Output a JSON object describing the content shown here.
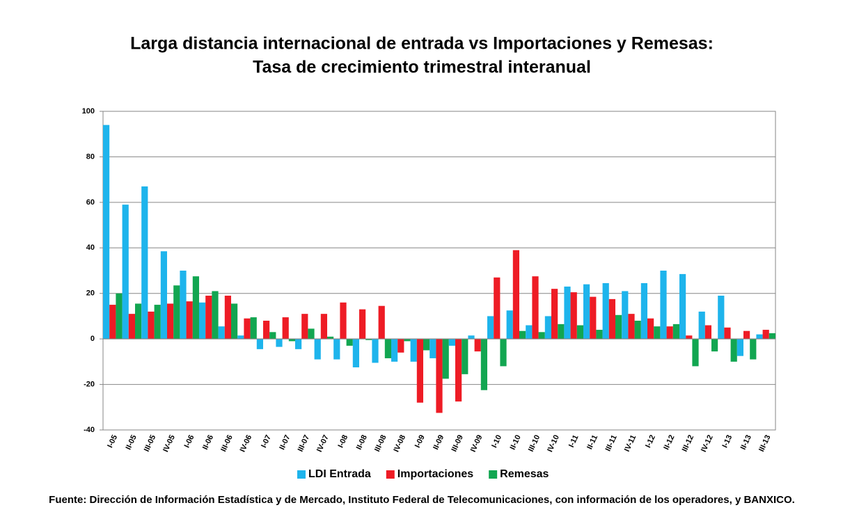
{
  "chart_data": {
    "type": "bar",
    "title": [
      "Larga distancia internacional de entrada vs Importaciones y Remesas:",
      "Tasa de crecimiento trimestral interanual"
    ],
    "categories": [
      "I-05",
      "II-05",
      "III-05",
      "IV-05",
      "I-06",
      "II-06",
      "III-06",
      "IV-06",
      "I-07",
      "II-07",
      "III-07",
      "IV-07",
      "I-08",
      "II-08",
      "III-08",
      "IV-08",
      "I-09",
      "II-09",
      "III-09",
      "IV-09",
      "I-10",
      "II-10",
      "III-10",
      "IV-10",
      "I-11",
      "II-11",
      "III-11",
      "IV-11",
      "I-12",
      "II-12",
      "III-12",
      "IV-12",
      "I-13",
      "II-13",
      "III-13"
    ],
    "series": [
      {
        "name": "LDI Entrada",
        "color": "#1eb4ec",
        "values": [
          94,
          59,
          67,
          38.5,
          30,
          16,
          5.5,
          1.5,
          -4.5,
          -3.5,
          -4.5,
          -9,
          -9,
          -12.5,
          -10.5,
          -10,
          -10,
          -8.5,
          -3,
          1.5,
          10,
          12.5,
          6,
          10,
          23,
          24,
          24.5,
          21,
          24.5,
          30,
          28.5,
          12,
          19,
          -7.5,
          2
        ]
      },
      {
        "name": "Importaciones",
        "color": "#ee1c25",
        "values": [
          15,
          11,
          12,
          15.5,
          16.5,
          19,
          19,
          9,
          8,
          9.5,
          11,
          11,
          16,
          13,
          14.5,
          -6,
          -28,
          -32.5,
          -27.5,
          -5.5,
          27,
          39,
          27.5,
          22,
          20.5,
          18.5,
          17.5,
          11,
          9,
          5.5,
          1.5,
          6,
          5,
          3.5,
          4
        ]
      },
      {
        "name": "Remesas",
        "color": "#12a651",
        "values": [
          20,
          15.5,
          15,
          23.5,
          27.5,
          21,
          15.5,
          9.5,
          3,
          -1,
          4.5,
          1,
          -3,
          -0.5,
          -8.5,
          -1,
          -5,
          -17.5,
          -15.5,
          -22.5,
          -12,
          3.5,
          3,
          6.5,
          6,
          4,
          10.5,
          8,
          5.5,
          6.5,
          -12,
          -5.5,
          -10,
          -9,
          2.5
        ]
      }
    ],
    "ylim": [
      -40,
      100
    ],
    "yticks": [
      -40,
      -20,
      0,
      20,
      40,
      60,
      80,
      100
    ],
    "grid": true,
    "legend": "bottom",
    "source": "Fuente: Dirección de Información Estadística y de Mercado, Instituto Federal de Telecomunicaciones, con información de los operadores, y BANXICO."
  }
}
